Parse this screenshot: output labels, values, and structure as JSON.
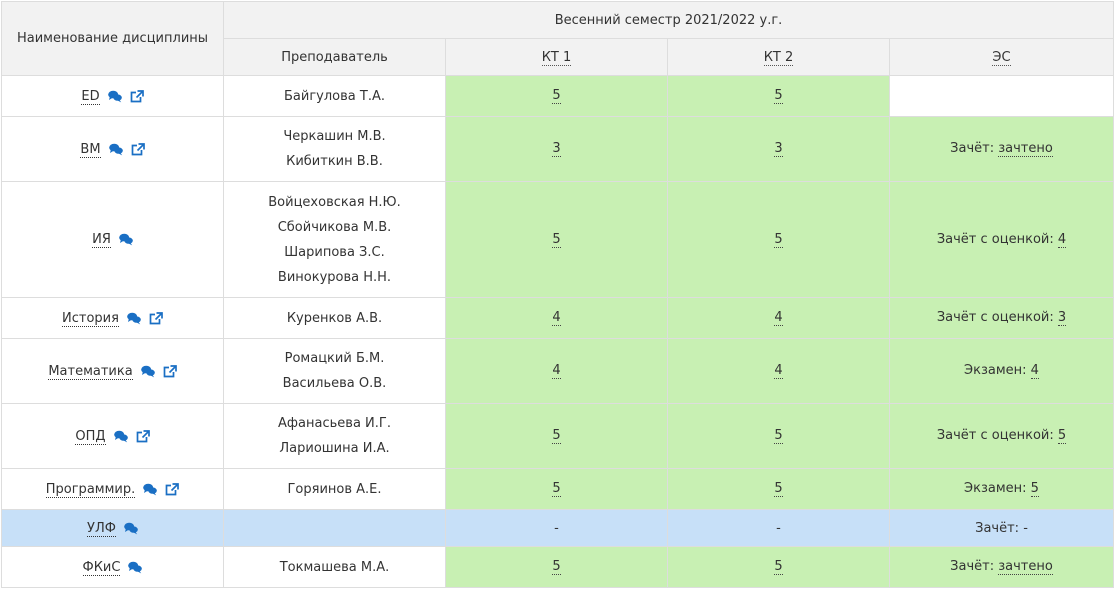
{
  "header": {
    "discipline": "Наименование дисциплины",
    "semester": "Весенний семестр 2021/2022 у.г.",
    "teacher": "Преподаватель",
    "kt1": "КТ 1",
    "kt2": "КТ 2",
    "es": "ЭС"
  },
  "colors": {
    "green": "#c8f0b3",
    "blue": "#c7e0f8",
    "header": "#f2f2f2",
    "icon": "#1a6fc4"
  },
  "rows": [
    {
      "name": "ED",
      "teachers": [
        "Байгулова Т.А."
      ],
      "kt1": "5",
      "kt2": "5",
      "es_label": "",
      "es_value": ""
    },
    {
      "name": "ВМ",
      "teachers": [
        "Черкашин М.В.",
        "Кибиткин В.В."
      ],
      "kt1": "3",
      "kt2": "3",
      "es_label": "Зачёт:",
      "es_value": "зачтено"
    },
    {
      "name": "ИЯ",
      "teachers": [
        "Войцеховская Н.Ю.",
        "Сбойчикова М.В.",
        "Шарипова З.С.",
        "Винокурова Н.Н."
      ],
      "kt1": "5",
      "kt2": "5",
      "es_label": "Зачёт с оценкой:",
      "es_value": "4"
    },
    {
      "name": "История",
      "teachers": [
        "Куренков А.В."
      ],
      "kt1": "4",
      "kt2": "4",
      "es_label": "Зачёт с оценкой:",
      "es_value": "3"
    },
    {
      "name": "Математика",
      "teachers": [
        "Ромацкий Б.М.",
        "Васильева О.В."
      ],
      "kt1": "4",
      "kt2": "4",
      "es_label": "Экзамен:",
      "es_value": "4"
    },
    {
      "name": "ОПД",
      "teachers": [
        "Афанасьева И.Г.",
        "Лариошина И.А."
      ],
      "kt1": "5",
      "kt2": "5",
      "es_label": "Зачёт с оценкой:",
      "es_value": "5"
    },
    {
      "name": "Программир.",
      "teachers": [
        "Горяинов А.Е."
      ],
      "kt1": "5",
      "kt2": "5",
      "es_label": "Экзамен:",
      "es_value": "5"
    },
    {
      "name": "УЛФ",
      "teachers": [],
      "kt1": "-",
      "kt2": "-",
      "es_label": "Зачёт:",
      "es_value": "-"
    },
    {
      "name": "ФКиС",
      "teachers": [
        "Токмашева М.А."
      ],
      "kt1": "5",
      "kt2": "5",
      "es_label": "Зачёт:",
      "es_value": "зачтено"
    }
  ]
}
